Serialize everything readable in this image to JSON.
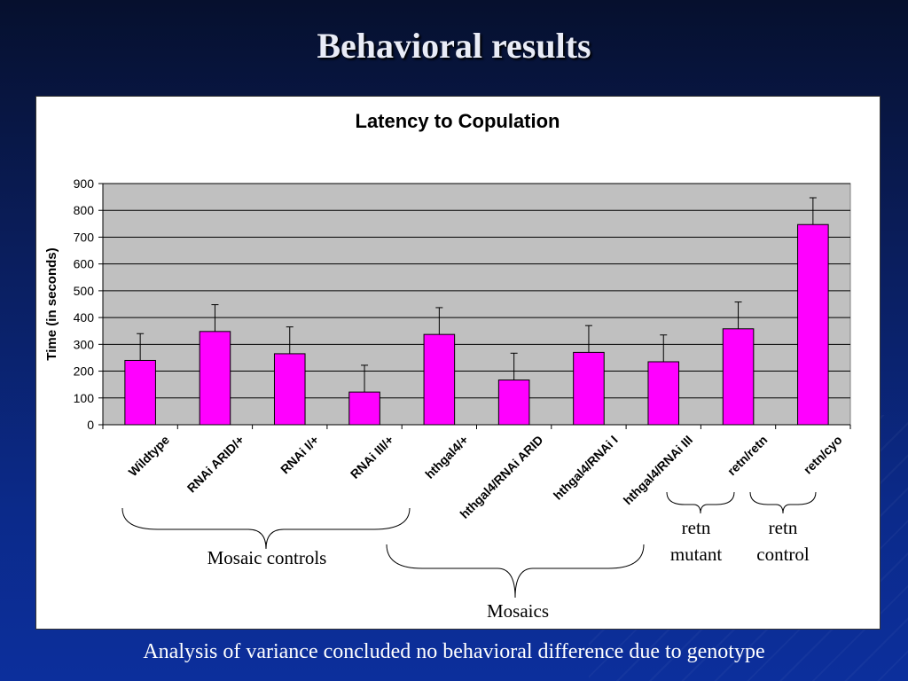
{
  "slide": {
    "title": "Behavioral results",
    "caption": "Analysis of variance concluded no behavioral difference due to genotype"
  },
  "colors": {
    "bar": "#ff00ff",
    "plot_area": "#c0c0c0",
    "slide_bg": "#0b2a8a"
  },
  "chart_data": {
    "type": "bar",
    "title": "Latency to Copulation",
    "xlabel": "",
    "ylabel": "Time (in seconds)",
    "ylim": [
      0,
      900
    ],
    "yticks": [
      0,
      100,
      200,
      300,
      400,
      500,
      600,
      700,
      800,
      900
    ],
    "grid": true,
    "categories": [
      "Wildtype",
      "RNAi ARID/+",
      "RNAi I/+",
      "RNAi III/+",
      "hthgal4/+",
      "hthgal4/RNAi ARID",
      "hthgal4/RNAi I",
      "hthgal4/RNAi III",
      "retn/retn",
      "retn/cyo"
    ],
    "values": [
      240,
      348,
      265,
      122,
      337,
      167,
      270,
      235,
      358,
      747
    ],
    "error_upper": [
      100,
      100,
      100,
      100,
      100,
      100,
      100,
      100,
      100,
      100
    ]
  },
  "annotations": {
    "mosaic_controls": "Mosaic controls",
    "mosaics": "Mosaics",
    "retn_mutant": [
      "retn",
      "mutant"
    ],
    "retn_control": [
      "retn",
      "control"
    ]
  }
}
